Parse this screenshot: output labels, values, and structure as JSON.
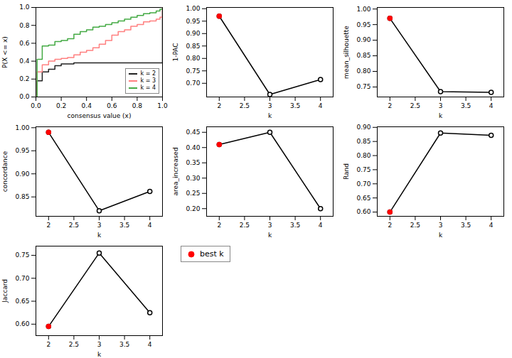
{
  "chart_data": [
    {
      "type": "step",
      "x_label": "consensus value (x)",
      "y_label": "P(X <= x)",
      "xlim": [
        0,
        1
      ],
      "ylim": [
        0,
        1
      ],
      "xticks": [
        {
          "value": 0,
          "label": "0.0"
        },
        0.2,
        0.4,
        0.6,
        0.8,
        {
          "value": 1,
          "label": "1.0"
        }
      ],
      "yticks": [
        {
          "value": 0,
          "label": "0.0"
        },
        0.2,
        0.4,
        0.6,
        0.8,
        {
          "value": 1,
          "label": "1.0"
        }
      ],
      "grid": false,
      "legend": "lower right",
      "series": [
        {
          "name": "k = 2",
          "color": "#222222",
          "x": [
            0.0,
            0.01,
            0.05,
            0.1,
            0.15,
            0.2,
            0.25,
            0.3,
            0.35,
            0.4,
            0.5,
            0.6,
            0.7,
            0.8,
            0.9,
            0.95,
            0.99,
            1.0
          ],
          "values": [
            0.0,
            0.18,
            0.28,
            0.31,
            0.35,
            0.37,
            0.37,
            0.38,
            0.38,
            0.38,
            0.38,
            0.38,
            0.38,
            0.38,
            0.38,
            0.38,
            0.38,
            1.0
          ]
        },
        {
          "name": "k = 3",
          "color": "#ff8080",
          "x": [
            0.0,
            0.01,
            0.05,
            0.1,
            0.15,
            0.2,
            0.25,
            0.3,
            0.35,
            0.4,
            0.45,
            0.5,
            0.55,
            0.6,
            0.65,
            0.7,
            0.75,
            0.8,
            0.85,
            0.9,
            0.95,
            0.98,
            1.0
          ],
          "values": [
            0.0,
            0.28,
            0.36,
            0.4,
            0.42,
            0.43,
            0.44,
            0.47,
            0.5,
            0.52,
            0.55,
            0.59,
            0.63,
            0.69,
            0.73,
            0.75,
            0.79,
            0.81,
            0.84,
            0.85,
            0.87,
            0.89,
            1.0
          ]
        },
        {
          "name": "k = 4",
          "color": "#44aa44",
          "x": [
            0.0,
            0.01,
            0.05,
            0.1,
            0.15,
            0.2,
            0.25,
            0.3,
            0.35,
            0.4,
            0.45,
            0.5,
            0.55,
            0.6,
            0.65,
            0.7,
            0.75,
            0.8,
            0.85,
            0.9,
            0.95,
            0.98,
            1.0
          ],
          "values": [
            0.0,
            0.42,
            0.57,
            0.58,
            0.62,
            0.63,
            0.65,
            0.7,
            0.73,
            0.75,
            0.78,
            0.79,
            0.81,
            0.83,
            0.85,
            0.87,
            0.89,
            0.91,
            0.93,
            0.94,
            0.96,
            0.98,
            1.0
          ]
        }
      ]
    },
    {
      "type": "line",
      "x_label": "k",
      "y_label": "1-PAC",
      "color": "#000000",
      "marker": "circle",
      "grid": false,
      "x": [
        2,
        3,
        4
      ],
      "values": [
        0.97,
        0.655,
        0.715
      ],
      "best_k": 2,
      "xlim": [
        1.75,
        4.25
      ],
      "xticks": [
        2,
        2.5,
        3,
        3.5,
        4
      ],
      "ylim": [
        0.645,
        1.005
      ],
      "yticks": [
        {
          "value": 0.7,
          "label": "0.70"
        },
        0.75,
        {
          "value": 0.8,
          "label": "0.80"
        },
        0.85,
        {
          "value": 0.9,
          "label": "0.90"
        },
        0.95,
        {
          "value": 1,
          "label": "1.00"
        }
      ]
    },
    {
      "type": "line",
      "x_label": "k",
      "y_label": "mean_silhouette",
      "color": "#000000",
      "marker": "circle",
      "grid": false,
      "x": [
        2,
        3,
        4
      ],
      "values": [
        0.97,
        0.735,
        0.733
      ],
      "best_k": 2,
      "xlim": [
        1.75,
        4.25
      ],
      "xticks": [
        2,
        2.5,
        3,
        3.5,
        4
      ],
      "ylim": [
        0.718,
        1.005
      ],
      "yticks": [
        0.75,
        {
          "value": 0.8,
          "label": "0.80"
        },
        0.85,
        {
          "value": 0.9,
          "label": "0.90"
        },
        0.95,
        {
          "value": 1,
          "label": "1.00"
        }
      ]
    },
    {
      "type": "line",
      "x_label": "k",
      "y_label": "concordance",
      "color": "#000000",
      "marker": "circle",
      "grid": false,
      "x": [
        2,
        3,
        4
      ],
      "values": [
        0.99,
        0.82,
        0.862
      ],
      "best_k": 2,
      "xlim": [
        1.75,
        4.25
      ],
      "xticks": [
        2,
        2.5,
        3,
        3.5,
        4
      ],
      "ylim": [
        0.808,
        1.002
      ],
      "yticks": [
        0.85,
        {
          "value": 0.9,
          "label": "0.90"
        },
        0.95,
        {
          "value": 1,
          "label": "1.00"
        }
      ]
    },
    {
      "type": "line",
      "x_label": "k",
      "y_label": "area_increased",
      "color": "#000000",
      "marker": "circle",
      "grid": false,
      "x": [
        2,
        3,
        4
      ],
      "values": [
        0.41,
        0.45,
        0.2
      ],
      "best_k": 2,
      "xlim": [
        1.75,
        4.25
      ],
      "xticks": [
        2,
        2.5,
        3,
        3.5,
        4
      ],
      "ylim": [
        0.175,
        0.468
      ],
      "yticks": [
        {
          "value": 0.2,
          "label": "0.20"
        },
        0.25,
        {
          "value": 0.3,
          "label": "0.30"
        },
        0.35,
        {
          "value": 0.4,
          "label": "0.40"
        },
        0.45
      ]
    },
    {
      "type": "line",
      "x_label": "k",
      "y_label": "Rand",
      "color": "#000000",
      "marker": "circle",
      "grid": false,
      "x": [
        2,
        3,
        4
      ],
      "values": [
        0.6,
        0.88,
        0.872
      ],
      "best_k": 2,
      "xlim": [
        1.75,
        4.25
      ],
      "xticks": [
        2,
        2.5,
        3,
        3.5,
        4
      ],
      "ylim": [
        0.585,
        0.902
      ],
      "yticks": [
        {
          "value": 0.6,
          "label": "0.60"
        },
        0.65,
        {
          "value": 0.7,
          "label": "0.70"
        },
        0.75,
        {
          "value": 0.8,
          "label": "0.80"
        },
        0.85,
        {
          "value": 0.9,
          "label": "0.90"
        }
      ]
    },
    {
      "type": "line",
      "x_label": "k",
      "y_label": "Jaccard",
      "color": "#000000",
      "marker": "circle",
      "grid": false,
      "x": [
        2,
        3,
        4
      ],
      "values": [
        0.595,
        0.755,
        0.625
      ],
      "best_k": 2,
      "xlim": [
        1.75,
        4.25
      ],
      "xticks": [
        2,
        2.5,
        3,
        3.5,
        4
      ],
      "ylim": [
        0.575,
        0.77
      ],
      "yticks": [
        {
          "value": 0.6,
          "label": "0.60"
        },
        0.65,
        {
          "value": 0.7,
          "label": "0.70"
        },
        0.75
      ]
    },
    {
      "type": "legend",
      "legend": "upper left",
      "series": [
        {
          "name": "best k",
          "color": "#ff0000",
          "marker": "circle"
        }
      ]
    }
  ]
}
